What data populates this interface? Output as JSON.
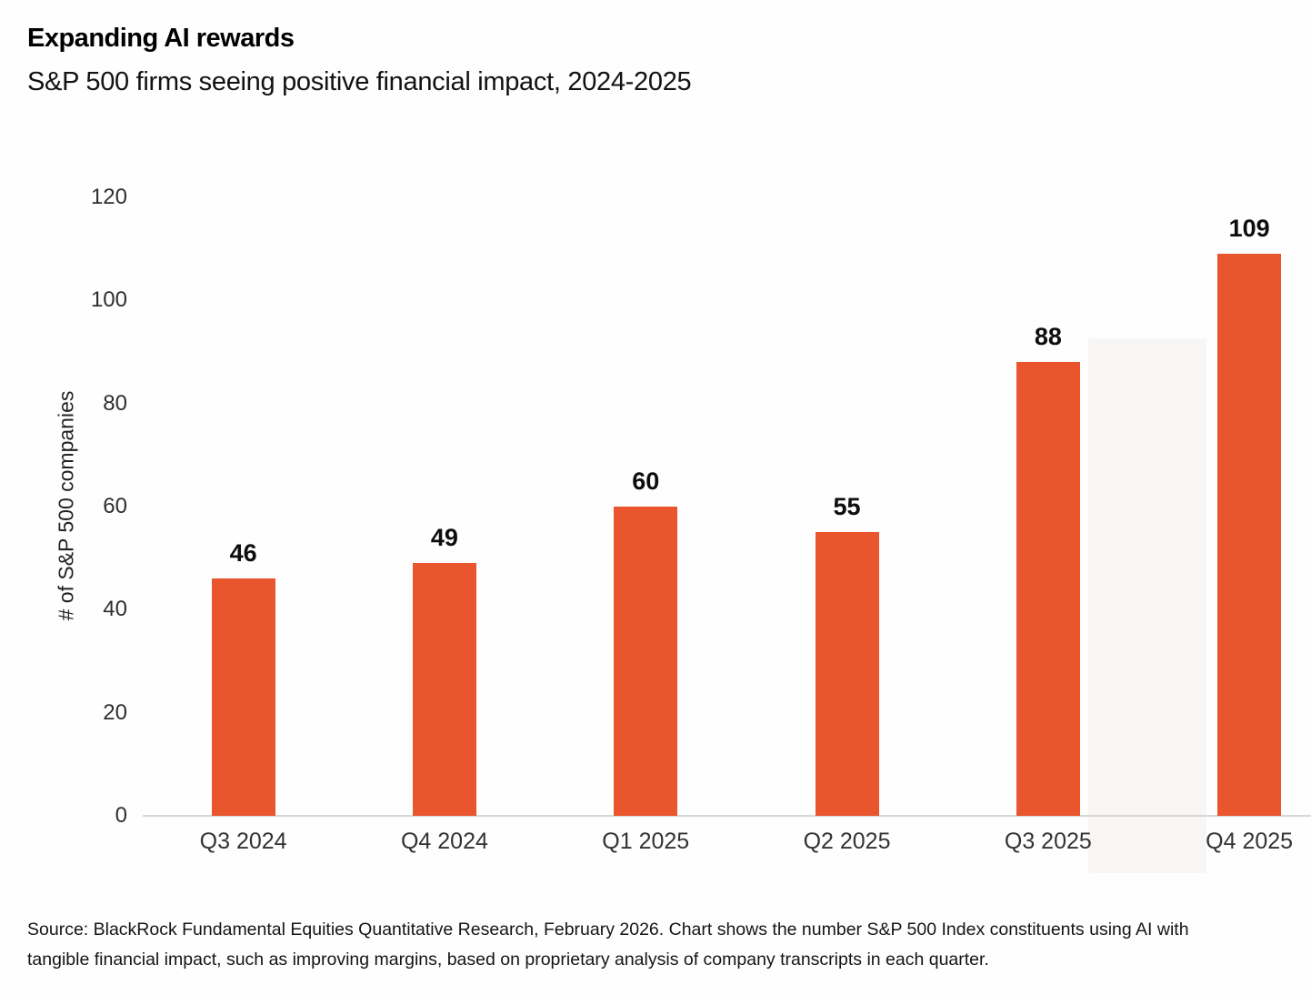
{
  "header": {
    "title": "Expanding AI rewards",
    "subtitle": "S&P 500 firms seeing positive financial impact, 2024-2025"
  },
  "chart_data": {
    "type": "bar",
    "title": "Expanding AI rewards",
    "subtitle": "S&P 500 firms seeing positive financial impact, 2024-2025",
    "categories": [
      "Q3 2024",
      "Q4 2024",
      "Q1 2025",
      "Q2 2025",
      "Q3 2025",
      "Q4 2025"
    ],
    "values": [
      46,
      49,
      60,
      55,
      88,
      109
    ],
    "xlabel": "",
    "ylabel": "# of S&P 500 companies",
    "ylim": [
      0,
      120
    ],
    "yticks": [
      0,
      20,
      40,
      60,
      80,
      100,
      120
    ],
    "grid": false,
    "legend": "none",
    "bar_color": "#E9552D",
    "value_label_color": "#0d0d0d"
  },
  "footer": {
    "source_line1": "Source: BlackRock Fundamental Equities Quantitative Research, February 2026. Chart shows the number S&P 500 Index constituents using AI with",
    "source_line2": "tangible financial impact, such as improving margins, based on proprietary analysis of company transcripts in each quarter."
  }
}
